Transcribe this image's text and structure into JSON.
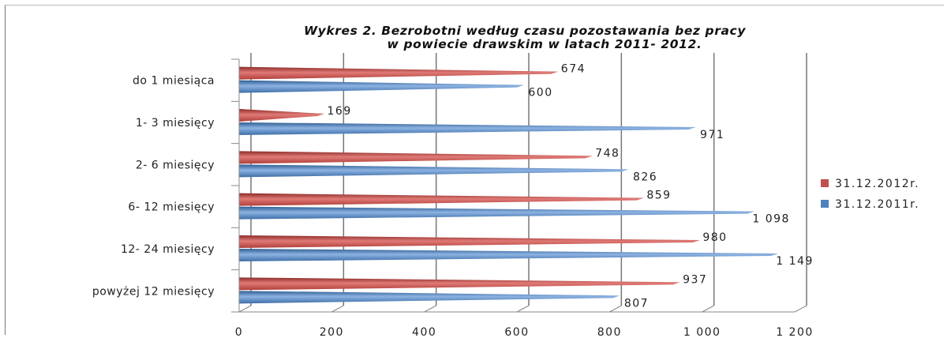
{
  "chart_data": {
    "type": "bar",
    "orientation": "horizontal",
    "style": "3d-cone",
    "title_lines": [
      "Wykres 2. Bezrobotni według czasu pozostawania bez pracy",
      "w powiecie drawskim w latach 2011- 2012."
    ],
    "categories": [
      "do 1 miesiąca",
      "1- 3 miesięcy",
      "2- 6 miesięcy",
      "6- 12 miesięcy",
      "12- 24 miesięcy",
      "powyżej 12 miesięcy"
    ],
    "series": [
      {
        "name": "31.12.2012r.",
        "color": "#c0504d",
        "values": [
          674,
          169,
          748,
          859,
          980,
          937
        ],
        "labels": [
          "674",
          "169",
          "748",
          "859",
          "980",
          "937"
        ]
      },
      {
        "name": "31.12.2011r.",
        "color": "#4f81bd",
        "values": [
          600,
          971,
          826,
          1098,
          1149,
          807
        ],
        "labels": [
          "600",
          "971",
          "826",
          "1 098",
          "1 149",
          "807"
        ]
      }
    ],
    "xlim": [
      0,
      1200
    ],
    "ticks": [
      0,
      200,
      400,
      600,
      800,
      1000,
      1200
    ],
    "tick_labels": [
      "0",
      "200",
      "400",
      "600",
      "800",
      "1 000",
      "1 200"
    ],
    "grid": true,
    "legend_position": "right"
  }
}
